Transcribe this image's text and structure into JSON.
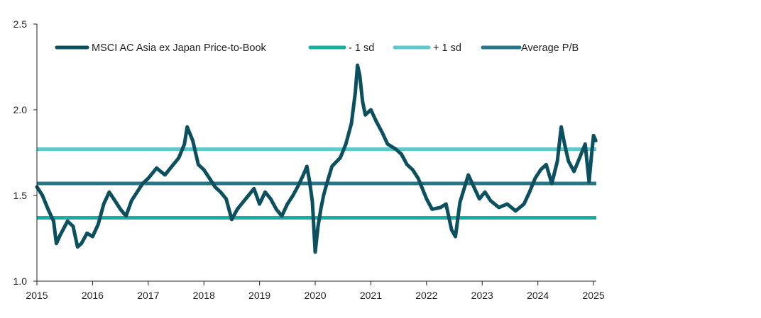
{
  "chart_data": {
    "type": "line",
    "title": "",
    "xlabel": "",
    "ylabel": "",
    "xlim": [
      2015.0,
      2025.05
    ],
    "ylim": [
      1.0,
      2.5
    ],
    "x_ticks": [
      "2015",
      "2016",
      "2017",
      "2018",
      "2019",
      "2020",
      "2021",
      "2022",
      "2023",
      "2024",
      "2025"
    ],
    "y_ticks": [
      "1.0",
      "1.5",
      "2.0",
      "2.5"
    ],
    "grid": false,
    "legend_position": "top",
    "colors": {
      "main": "#0c4f5e",
      "minus_sd": "#1aaea0",
      "plus_sd": "#5fc9cc",
      "average": "#2a7689",
      "axis": "#231f20"
    },
    "series": [
      {
        "name": "MSCI AC Asia ex Japan Price-to-Book",
        "x": [
          2015.0,
          2015.1,
          2015.2,
          2015.3,
          2015.35,
          2015.42,
          2015.55,
          2015.65,
          2015.73,
          2015.8,
          2015.9,
          2016.0,
          2016.1,
          2016.2,
          2016.3,
          2016.4,
          2016.5,
          2016.6,
          2016.7,
          2016.8,
          2016.9,
          2017.0,
          2017.15,
          2017.3,
          2017.45,
          2017.55,
          2017.65,
          2017.7,
          2017.8,
          2017.9,
          2018.0,
          2018.1,
          2018.2,
          2018.3,
          2018.4,
          2018.5,
          2018.6,
          2018.7,
          2018.8,
          2018.9,
          2019.0,
          2019.1,
          2019.2,
          2019.3,
          2019.4,
          2019.5,
          2019.6,
          2019.7,
          2019.8,
          2019.85,
          2019.9,
          2019.95,
          2020.0,
          2020.05,
          2020.1,
          2020.15,
          2020.2,
          2020.3,
          2020.45,
          2020.55,
          2020.65,
          2020.72,
          2020.76,
          2020.8,
          2020.85,
          2020.9,
          2021.0,
          2021.1,
          2021.2,
          2021.3,
          2021.45,
          2021.55,
          2021.65,
          2021.75,
          2021.85,
          2022.0,
          2022.1,
          2022.25,
          2022.35,
          2022.45,
          2022.52,
          2022.6,
          2022.75,
          2022.85,
          2022.95,
          2023.05,
          2023.15,
          2023.3,
          2023.45,
          2023.6,
          2023.75,
          2023.85,
          2023.95,
          2024.05,
          2024.15,
          2024.25,
          2024.35,
          2024.42,
          2024.48,
          2024.55,
          2024.65,
          2024.75,
          2024.85,
          2024.92,
          2024.96,
          2025.0,
          2025.04
        ],
        "values": [
          1.55,
          1.5,
          1.42,
          1.35,
          1.22,
          1.27,
          1.35,
          1.32,
          1.2,
          1.22,
          1.28,
          1.26,
          1.33,
          1.45,
          1.52,
          1.47,
          1.42,
          1.38,
          1.47,
          1.52,
          1.57,
          1.6,
          1.66,
          1.62,
          1.68,
          1.72,
          1.8,
          1.9,
          1.82,
          1.68,
          1.65,
          1.6,
          1.55,
          1.52,
          1.48,
          1.36,
          1.42,
          1.46,
          1.5,
          1.54,
          1.45,
          1.52,
          1.48,
          1.42,
          1.38,
          1.45,
          1.5,
          1.56,
          1.63,
          1.67,
          1.58,
          1.46,
          1.17,
          1.32,
          1.42,
          1.5,
          1.56,
          1.67,
          1.72,
          1.8,
          1.92,
          2.1,
          2.26,
          2.2,
          2.05,
          1.97,
          2.0,
          1.93,
          1.87,
          1.8,
          1.77,
          1.74,
          1.68,
          1.65,
          1.6,
          1.48,
          1.42,
          1.43,
          1.45,
          1.3,
          1.26,
          1.46,
          1.62,
          1.55,
          1.48,
          1.52,
          1.47,
          1.43,
          1.45,
          1.41,
          1.45,
          1.52,
          1.6,
          1.65,
          1.68,
          1.57,
          1.7,
          1.9,
          1.8,
          1.7,
          1.64,
          1.72,
          1.8,
          1.58,
          1.72,
          1.85,
          1.82
        ]
      },
      {
        "name": "- 1 sd",
        "constant": 1.37
      },
      {
        "name": "+ 1 sd",
        "constant": 1.77
      },
      {
        "name": "Average P/B",
        "constant": 1.57
      }
    ]
  }
}
